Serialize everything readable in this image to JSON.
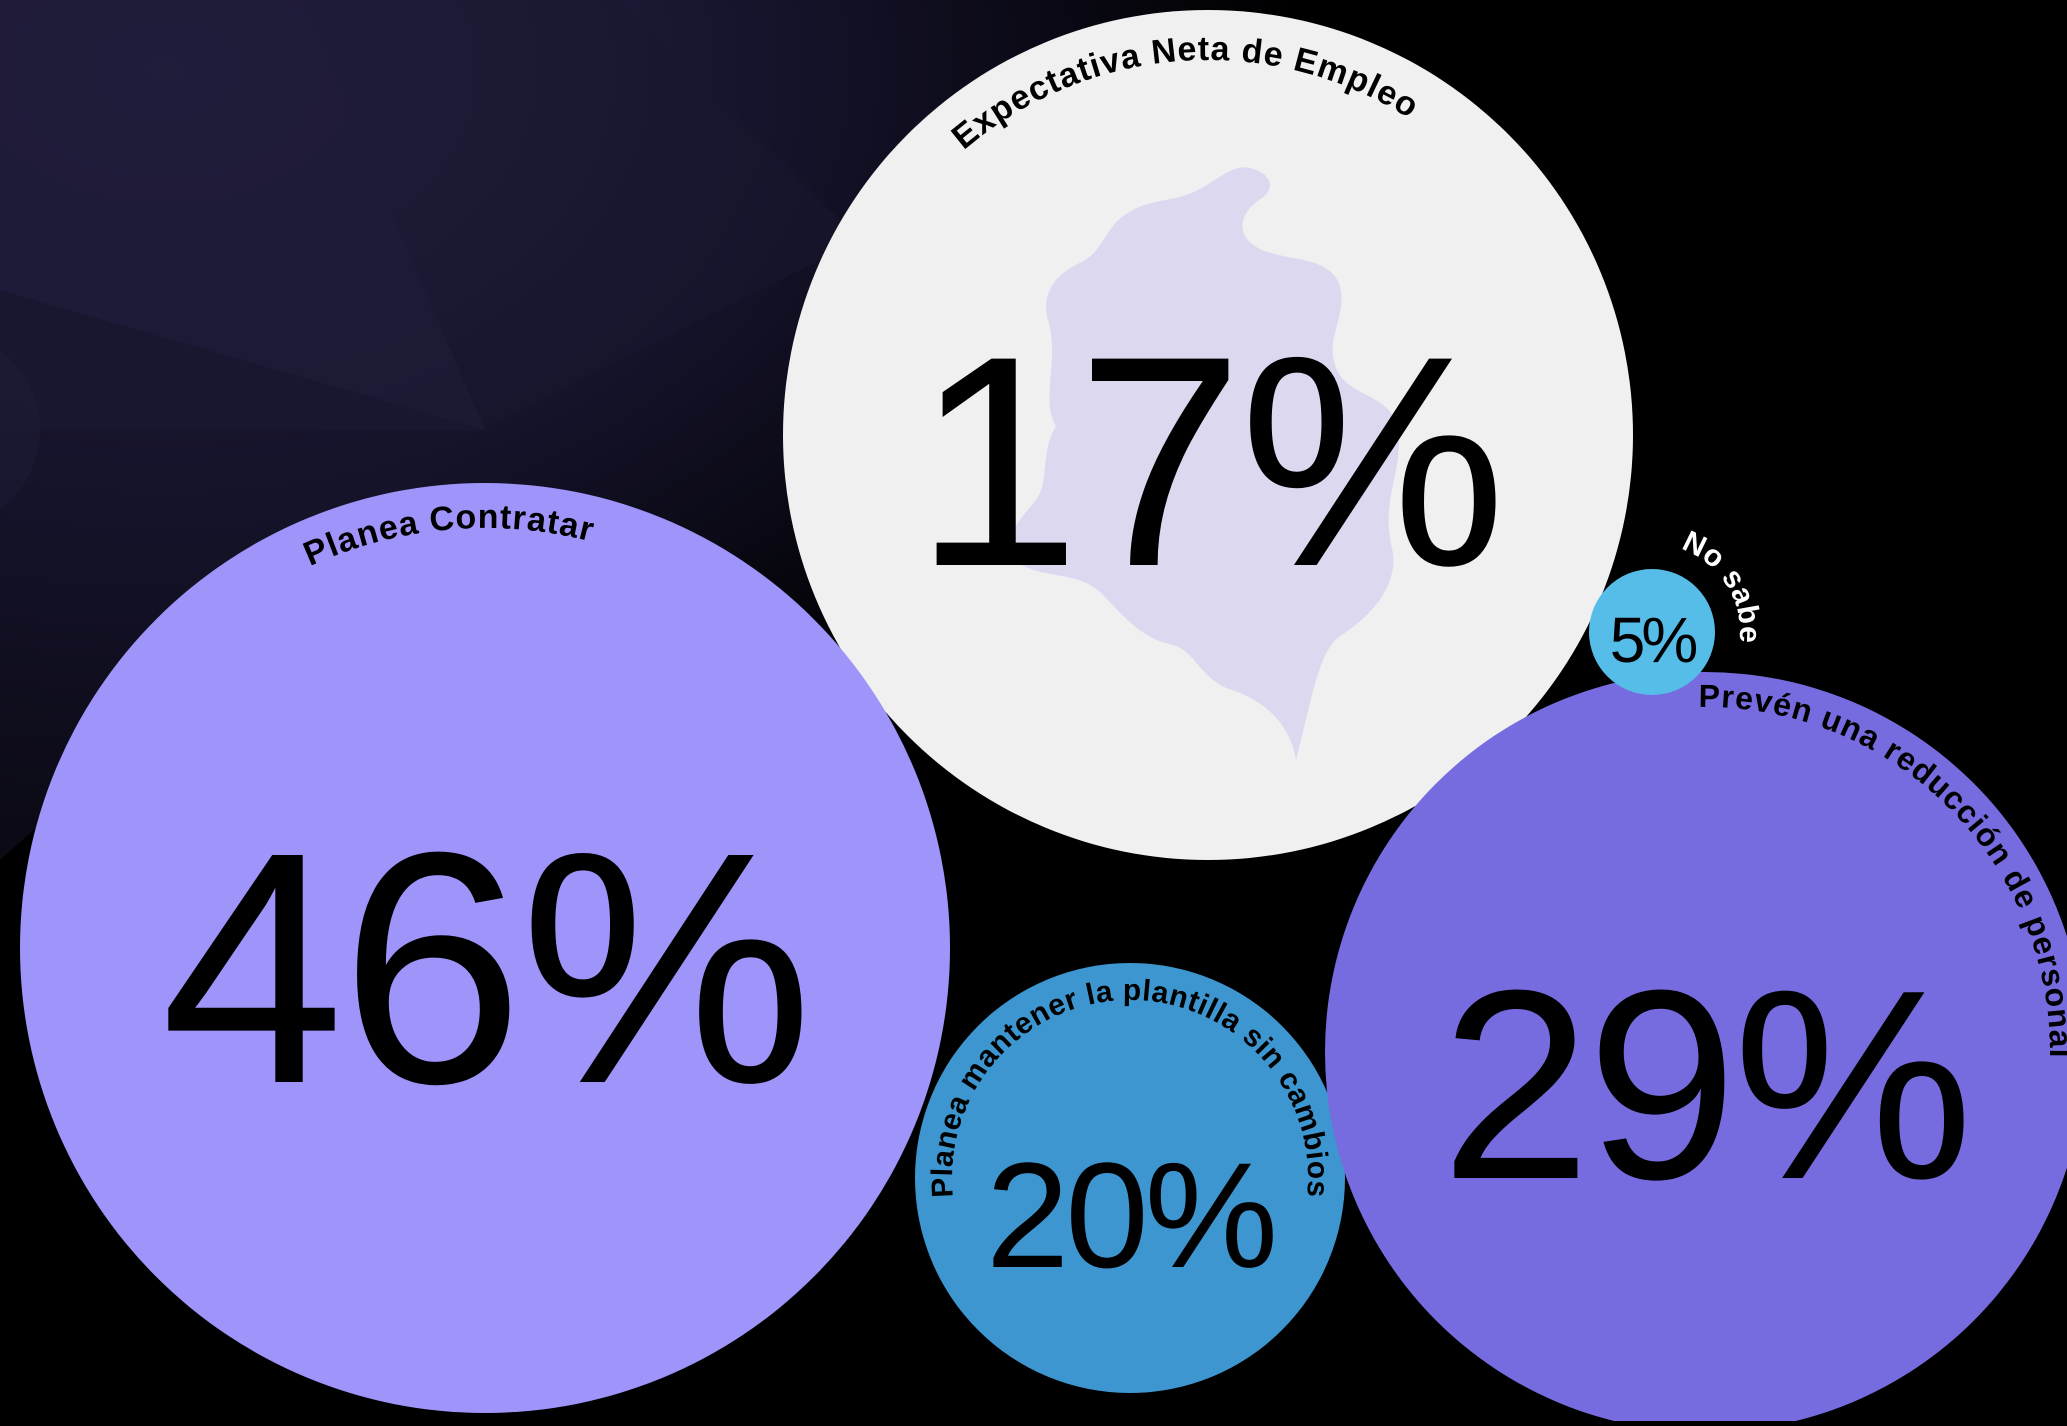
{
  "chart_data": {
    "type": "bubble",
    "title": "",
    "bubbles": [
      {
        "key": "net",
        "label": "Expectativa Neta de Empleo",
        "value": 17,
        "display": "17%",
        "color": "#f0f0f0",
        "label_color": "#000000"
      },
      {
        "key": "hire",
        "label": "Planea Contratar",
        "value": 46,
        "display": "46%",
        "color": "#9e94f9",
        "label_color": "#000000"
      },
      {
        "key": "same",
        "label": "Planea mantener la plantilla sin cambios",
        "value": 20,
        "display": "20%",
        "color": "#3d96d0",
        "label_color": "#000000"
      },
      {
        "key": "reduce",
        "label": "Prevén una reducción de personal",
        "value": 29,
        "display": "29%",
        "color": "#766cdf",
        "label_color": "#000000"
      },
      {
        "key": "unknown",
        "label": "No sabe",
        "value": 5,
        "display": "5%",
        "color": "#56bce8",
        "label_color": "#ffffff"
      }
    ]
  },
  "decor": {
    "map_icon": "colombia-map-icon",
    "map_color": "#dcd8f0"
  }
}
